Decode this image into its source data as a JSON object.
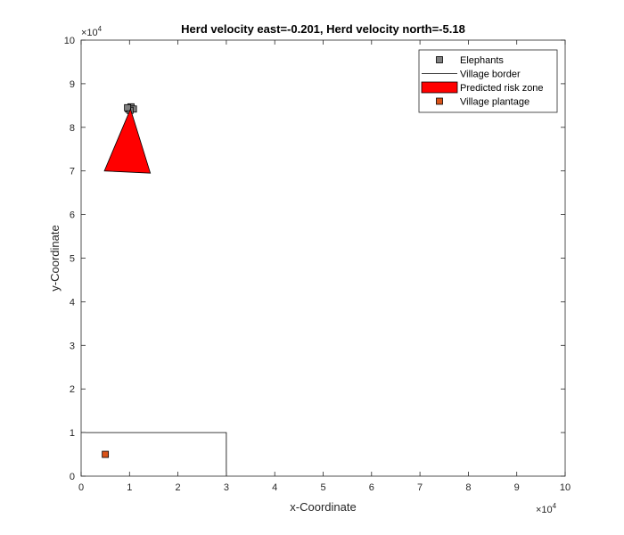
{
  "chart_data": {
    "type": "scatter",
    "title": "Herd velocity east=-0.201, Herd velocity north=-5.18",
    "xlabel": "x-Coordinate",
    "ylabel": "y-Coordinate",
    "xlim": [
      0,
      100000
    ],
    "ylim": [
      0,
      100000
    ],
    "x_ticks": [
      0,
      10000,
      20000,
      30000,
      40000,
      50000,
      60000,
      70000,
      80000,
      90000,
      100000
    ],
    "y_ticks": [
      0,
      10000,
      20000,
      30000,
      40000,
      50000,
      60000,
      70000,
      80000,
      90000,
      100000
    ],
    "x_tick_labels": [
      "0",
      "1",
      "2",
      "3",
      "4",
      "5",
      "6",
      "7",
      "8",
      "9",
      "10"
    ],
    "y_tick_labels": [
      "0",
      "1",
      "2",
      "3",
      "4",
      "5",
      "6",
      "7",
      "8",
      "9",
      "10"
    ],
    "x_exponent": {
      "base": "×10",
      "power": "4"
    },
    "y_exponent": {
      "base": "×10",
      "power": "4"
    },
    "grid": false,
    "legend_position": "top-right",
    "series": [
      {
        "name": "Elephants",
        "kind": "markers",
        "color": "#808080",
        "points": [
          [
            9800,
            84200
          ],
          [
            10300,
            84700
          ],
          [
            10800,
            84200
          ],
          [
            10100,
            83900
          ],
          [
            9600,
            84500
          ]
        ]
      },
      {
        "name": "Village border",
        "kind": "line",
        "color": "#000000",
        "points": [
          [
            0,
            10000
          ],
          [
            30000,
            10000
          ],
          [
            30000,
            0
          ]
        ]
      },
      {
        "name": "Predicted risk zone",
        "kind": "polygon",
        "color": "#ff0000",
        "points": [
          [
            10200,
            84200
          ],
          [
            4800,
            70000
          ],
          [
            14300,
            69500
          ]
        ]
      },
      {
        "name": "Village plantage",
        "kind": "markers",
        "color": "#d95319",
        "points": [
          [
            5000,
            5000
          ]
        ]
      }
    ]
  }
}
